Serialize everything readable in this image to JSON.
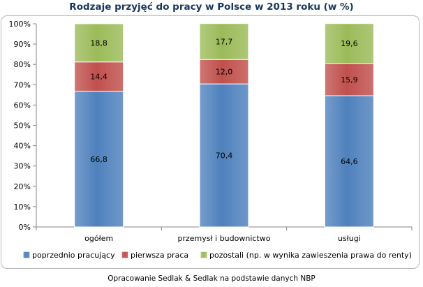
{
  "chart_data": {
    "type": "bar",
    "stacked": true,
    "title": "Rodzaje przyjęć do pracy w Polsce w 2013 roku (w %)",
    "categories": [
      "ogółem",
      "przemysł i budownictwo",
      "usługi"
    ],
    "series": [
      {
        "name": "poprzednio pracujący",
        "color": "#4f81bd",
        "values": [
          66.8,
          70.4,
          64.6
        ],
        "labels": [
          "66,8",
          "70,4",
          "64,6"
        ]
      },
      {
        "name": "pierwsza praca",
        "color": "#c0504d",
        "values": [
          14.4,
          12.0,
          15.9
        ],
        "labels": [
          "14,4",
          "12,0",
          "15,9"
        ]
      },
      {
        "name": "pozostali (np. w wynika zawieszenia prawa do renty)",
        "color": "#9bbb59",
        "values": [
          18.8,
          17.7,
          19.6
        ],
        "labels": [
          "18,8",
          "17,7",
          "19,6"
        ]
      }
    ],
    "y_ticks": [
      "0%",
      "10%",
      "20%",
      "30%",
      "40%",
      "50%",
      "60%",
      "70%",
      "80%",
      "90%",
      "100%"
    ],
    "ylim": [
      0,
      100
    ],
    "grid": false,
    "legend_position": "bottom"
  },
  "source_note": "Opracowanie Sedlak & Sedlak na podstawie danych NBP"
}
